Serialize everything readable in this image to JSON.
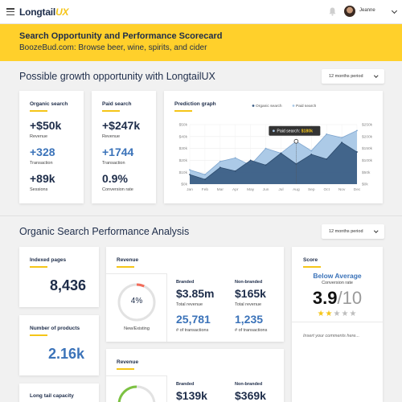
{
  "topbar": {
    "logo_main": "Longtail",
    "logo_accent": "UX",
    "user_name": "Jeanne"
  },
  "banner": {
    "title": "Search Opportunity and Performance Scorecard",
    "subtitle": "BoozeBud.com: Browse beer, wine, spirits, and cider"
  },
  "growth": {
    "heading": "Possible growth opportunity with LongtailUX",
    "period": "12 months period",
    "organic": {
      "title": "Organic search",
      "revenue_value": "+$50k",
      "revenue_label": "Revenue",
      "transaction_value": "+328",
      "transaction_label": "Transaction",
      "sessions_value": "+89k",
      "sessions_label": "Sessions"
    },
    "paid": {
      "title": "Paid search",
      "revenue_value": "+$247k",
      "revenue_label": "Revenue",
      "transaction_value": "+1744",
      "transaction_label": "Transaction",
      "conversion_value": "0.9%",
      "conversion_label": "Conversion rate"
    }
  },
  "prediction": {
    "title": "Prediction graph",
    "legend_organic": "Organic search",
    "legend_paid": "Paid search",
    "tooltip_label": "Paid search:",
    "tooltip_value": "$180k",
    "colors": {
      "organic": "#3c5f86",
      "paid": "#a8c7e6",
      "tooltip_bg": "#333333",
      "accent": "#f5c518"
    }
  },
  "chart_data": {
    "type": "area",
    "title": "Prediction graph",
    "categories": [
      "Jan",
      "Feb",
      "Mar",
      "Apr",
      "May",
      "Jun",
      "Jul",
      "Aug",
      "Sep",
      "Oct",
      "Nov",
      "Dec"
    ],
    "left_axis_ticks": [
      "$50k",
      "$40k",
      "$30k",
      "$20k",
      "$10k",
      "$0k"
    ],
    "right_axis_ticks": [
      "$250k",
      "$200k",
      "$150k",
      "$100k",
      "$50k",
      "$0k"
    ],
    "ylim_left": [
      0,
      50
    ],
    "ylim_right": [
      0,
      250
    ],
    "series": [
      {
        "name": "Paid search",
        "axis": "right",
        "values": [
          60,
          40,
          95,
          110,
          80,
          150,
          130,
          180,
          140,
          210,
          195,
          225
        ]
      },
      {
        "name": "Organic search",
        "axis": "left",
        "values": [
          8,
          4,
          14,
          11,
          20,
          16,
          26,
          17,
          25,
          21,
          35,
          27
        ]
      }
    ],
    "grid": true,
    "legend": "top-right",
    "highlight": {
      "series": "Paid search",
      "category": "Aug",
      "value": 180
    }
  },
  "performance": {
    "heading": "Organic Search Performance Analysis",
    "period": "12 months period",
    "indexed": {
      "title": "Indexed pages",
      "value": "8,436"
    },
    "products": {
      "title": "Number of products",
      "value": "2.16k"
    },
    "longtail": {
      "title": "Long tail capacity"
    },
    "revenue1": {
      "title": "Revenue",
      "gauge_value": "4%",
      "gauge_percent": 4,
      "gauge_label": "New/Existing",
      "branded_label": "Branded",
      "branded_value": "$3.85m",
      "branded_sub": "Total revenue",
      "branded_tx": "25,781",
      "branded_tx_sub": "# of transactions",
      "nonbranded_label": "Non-branded",
      "nonbranded_value": "$165k",
      "nonbranded_sub": "Total revenue",
      "nonbranded_tx": "1,235",
      "nonbranded_tx_sub": "# of transactions"
    },
    "revenue2": {
      "title": "Revenue",
      "branded_label": "Branded",
      "branded_value": "$139k",
      "nonbranded_label": "Non-branded",
      "nonbranded_value": "$369k"
    },
    "score": {
      "title": "Score",
      "rating": "Below Average",
      "rating_sub": "Conversion rate",
      "value": "3.9",
      "out_of": "/10",
      "stars_filled": 2,
      "stars_total": 5,
      "comment_placeholder": "Insert your comments here..."
    }
  }
}
